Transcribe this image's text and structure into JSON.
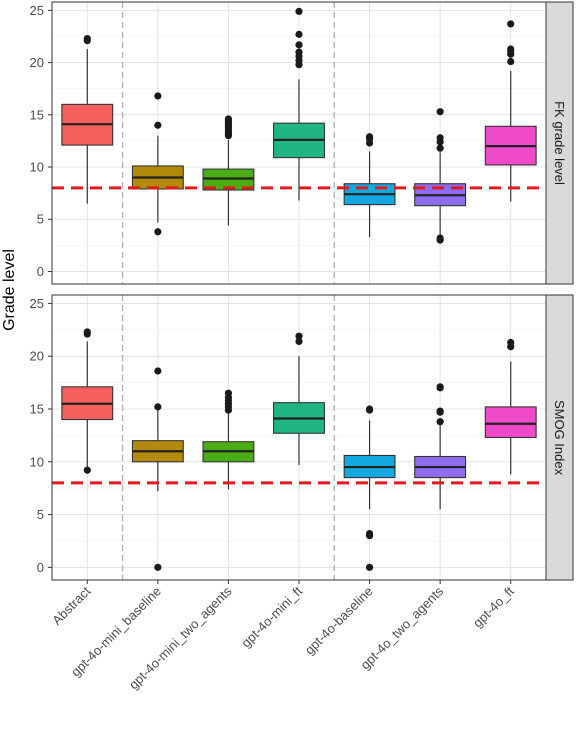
{
  "chart_data": {
    "type": "box",
    "ylabel": "Grade level",
    "xlabel": "",
    "categories": [
      "Abstract",
      "gpt-4o-mini_baseline",
      "gpt-4o-mini_two_agents",
      "gpt-4o-mini_ft",
      "gpt-4o-baseline",
      "gpt-4o_two_agents",
      "gpt-4o_ft"
    ],
    "colors": [
      "#f8605d",
      "#b38a0a",
      "#4aad14",
      "#1fb585",
      "#13a8e0",
      "#8e6df2",
      "#ef4ac9"
    ],
    "yticks": [
      0,
      5,
      10,
      15,
      20,
      25
    ],
    "ylim": [
      -1.2,
      25.8
    ],
    "reference_line": 8,
    "reference_color": "#e31a1c",
    "group_separators_after": [
      0,
      3
    ],
    "panels": [
      {
        "label": "FK grade level",
        "boxes": [
          {
            "q1": 12.1,
            "median": 14.1,
            "q3": 16.0,
            "low": 6.5,
            "high": 21.3,
            "outliers": [
              22.1,
              22.3
            ]
          },
          {
            "q1": 7.9,
            "median": 9.0,
            "q3": 10.1,
            "low": 4.7,
            "high": 13.0,
            "outliers": [
              3.8,
              14.0,
              16.8
            ]
          },
          {
            "q1": 7.8,
            "median": 8.9,
            "q3": 9.8,
            "low": 4.4,
            "high": 12.6,
            "outliers": [
              13.0,
              13.2,
              13.4,
              13.6,
              13.8,
              14.0,
              14.2,
              14.4,
              14.6
            ]
          },
          {
            "q1": 10.9,
            "median": 12.6,
            "q3": 14.2,
            "low": 6.8,
            "high": 18.4,
            "outliers": [
              19.8,
              20.2,
              20.6,
              21.0,
              21.7,
              22.7,
              24.9
            ]
          },
          {
            "q1": 6.4,
            "median": 7.4,
            "q3": 8.4,
            "low": 3.3,
            "high": 11.5,
            "outliers": [
              12.3,
              12.7,
              12.9
            ]
          },
          {
            "q1": 6.3,
            "median": 7.3,
            "q3": 8.4,
            "low": 3.3,
            "high": 11.4,
            "outliers": [
              3.0,
              3.2,
              11.8,
              12.4,
              12.8,
              15.3
            ]
          },
          {
            "q1": 10.2,
            "median": 12.0,
            "q3": 13.9,
            "low": 6.7,
            "high": 19.2,
            "outliers": [
              20.1,
              20.8,
              21.1,
              21.3,
              23.7
            ]
          }
        ]
      },
      {
        "label": "SMOG Index",
        "boxes": [
          {
            "q1": 14.0,
            "median": 15.5,
            "q3": 17.1,
            "low": 9.5,
            "high": 21.4,
            "outliers": [
              9.2,
              22.1,
              22.3
            ]
          },
          {
            "q1": 10.0,
            "median": 11.0,
            "q3": 12.0,
            "low": 7.2,
            "high": 14.9,
            "outliers": [
              0.0,
              15.2,
              18.6
            ]
          },
          {
            "q1": 10.0,
            "median": 11.0,
            "q3": 11.9,
            "low": 7.4,
            "high": 14.6,
            "outliers": [
              14.9,
              15.2,
              15.5,
              15.8,
              16.1,
              16.5
            ]
          },
          {
            "q1": 12.7,
            "median": 14.1,
            "q3": 15.6,
            "low": 9.7,
            "high": 20.0,
            "outliers": [
              21.4,
              21.9
            ]
          },
          {
            "q1": 8.5,
            "median": 9.5,
            "q3": 10.6,
            "low": 5.5,
            "high": 13.9,
            "outliers": [
              0.0,
              3.0,
              3.2,
              14.9,
              15.0
            ]
          },
          {
            "q1": 8.5,
            "median": 9.5,
            "q3": 10.5,
            "low": 5.5,
            "high": 13.5,
            "outliers": [
              13.8,
              14.7,
              14.8,
              17.0,
              17.1
            ]
          },
          {
            "q1": 12.3,
            "median": 13.6,
            "q3": 15.2,
            "low": 8.8,
            "high": 19.5,
            "outliers": [
              20.9,
              21.3
            ]
          }
        ]
      }
    ]
  }
}
